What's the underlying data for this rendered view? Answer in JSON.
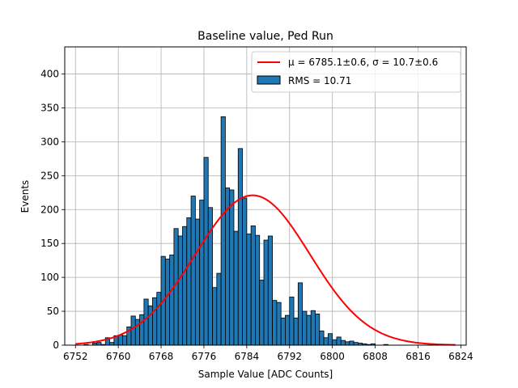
{
  "chart_data": {
    "type": "bar",
    "title": "Baseline value, Ped Run",
    "xlabel": "Sample Value [ADC Counts]",
    "ylabel": "Events",
    "xlim": [
      6750,
      6825
    ],
    "ylim": [
      0,
      440
    ],
    "xticks": [
      6752,
      6760,
      6768,
      6776,
      6784,
      6792,
      6800,
      6808,
      6816,
      6824
    ],
    "yticks": [
      0,
      50,
      100,
      150,
      200,
      250,
      300,
      350,
      400
    ],
    "grid": true,
    "legend_position": "top-right",
    "bin_width": 0.8,
    "bin_start": 6752,
    "bar_color": "#1f77b4",
    "fit_color": "#ff0000",
    "bin_counts": [
      0,
      0,
      1,
      0,
      3,
      4,
      1,
      11,
      4,
      14,
      15,
      14,
      27,
      43,
      38,
      45,
      68,
      58,
      70,
      78,
      131,
      127,
      133,
      172,
      161,
      175,
      188,
      220,
      186,
      214,
      277,
      203,
      85,
      106,
      337,
      232,
      229,
      168,
      290,
      217,
      164,
      176,
      162,
      96,
      155,
      161,
      66,
      63,
      40,
      44,
      71,
      40,
      92,
      50,
      44,
      51,
      46,
      21,
      11,
      17,
      8,
      12,
      7,
      5,
      6,
      4,
      3,
      2,
      1,
      2,
      0,
      0,
      1,
      0,
      0,
      0,
      0,
      0,
      0,
      0,
      0,
      0,
      0,
      0,
      0,
      0,
      0,
      0,
      0,
      0
    ],
    "fit": {
      "mu": 6785.1,
      "sigma": 10.7,
      "amplitude": 221
    },
    "legend": [
      {
        "type": "line",
        "label": "μ = 6785.1±0.6, σ = 10.7±0.6"
      },
      {
        "type": "patch",
        "label": "RMS = 10.71"
      }
    ]
  }
}
